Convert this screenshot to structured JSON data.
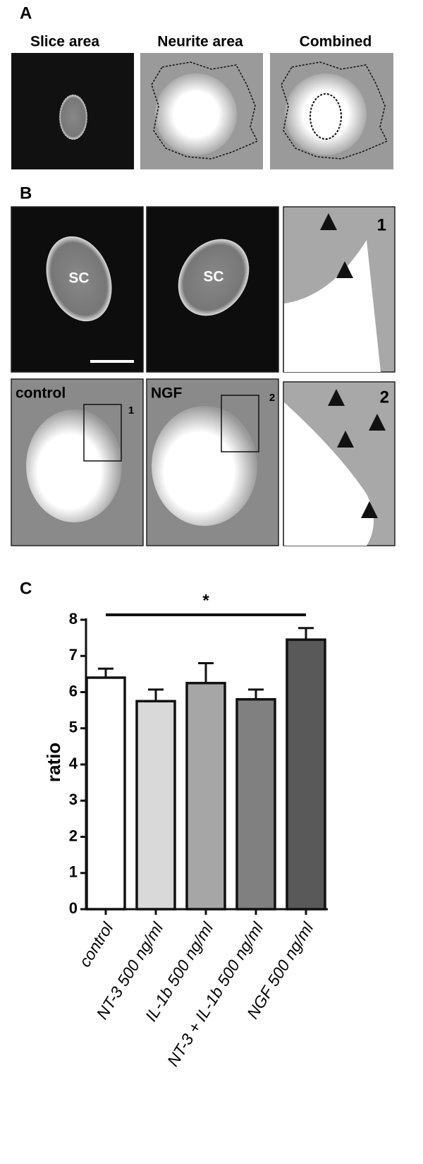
{
  "panels": {
    "A": {
      "label": "A",
      "titles": [
        "Slice area",
        "Neurite area",
        "Combined"
      ]
    },
    "B": {
      "label": "B",
      "sc": [
        "SC",
        "SC"
      ],
      "conditions": [
        "control",
        "NGF"
      ],
      "insets": [
        "1",
        "2"
      ]
    },
    "C": {
      "label": "C"
    }
  },
  "chart_data": {
    "type": "bar",
    "ylabel": "ratio",
    "categories": [
      "control",
      "NT-3 500 ng/ml",
      "IL-1b 500 ng/ml",
      "NT-3 + IL-1b 500 ng/ml",
      "NGF 500 ng/ml"
    ],
    "values": [
      6.4,
      5.75,
      6.25,
      5.8,
      7.45
    ],
    "errors": [
      0.25,
      0.32,
      0.55,
      0.27,
      0.32
    ],
    "colors": [
      "#ffffff",
      "#d9d9d9",
      "#a6a6a6",
      "#808080",
      "#595959"
    ],
    "ylim": [
      0,
      8
    ],
    "yticks": [
      0,
      1,
      2,
      3,
      4,
      5,
      6,
      7,
      8
    ],
    "annotation": "*"
  }
}
